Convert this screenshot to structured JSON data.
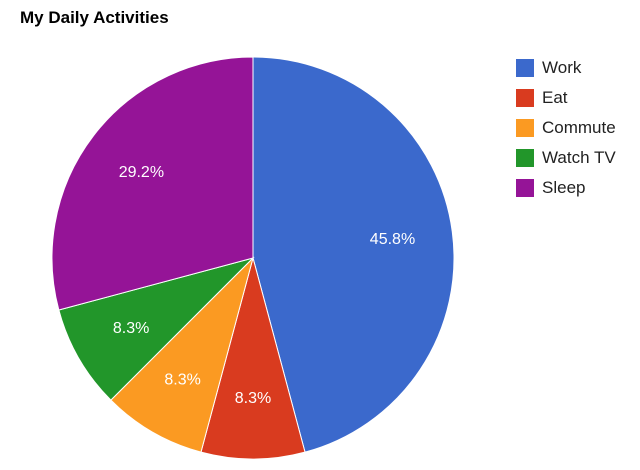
{
  "chart_data": {
    "type": "pie",
    "title": "My Daily Activities",
    "legend_position": "right",
    "slices": [
      {
        "name": "Work",
        "value": 11,
        "label": "45.8%",
        "color": "#3b69cc"
      },
      {
        "name": "Eat",
        "value": 2,
        "label": "8.3%",
        "color": "#d93b1f"
      },
      {
        "name": "Commute",
        "value": 2,
        "label": "8.3%",
        "color": "#fb9a22"
      },
      {
        "name": "Watch TV",
        "value": 2,
        "label": "8.3%",
        "color": "#22962a"
      },
      {
        "name": "Sleep",
        "value": 7,
        "label": "29.2%",
        "color": "#951497"
      }
    ]
  }
}
